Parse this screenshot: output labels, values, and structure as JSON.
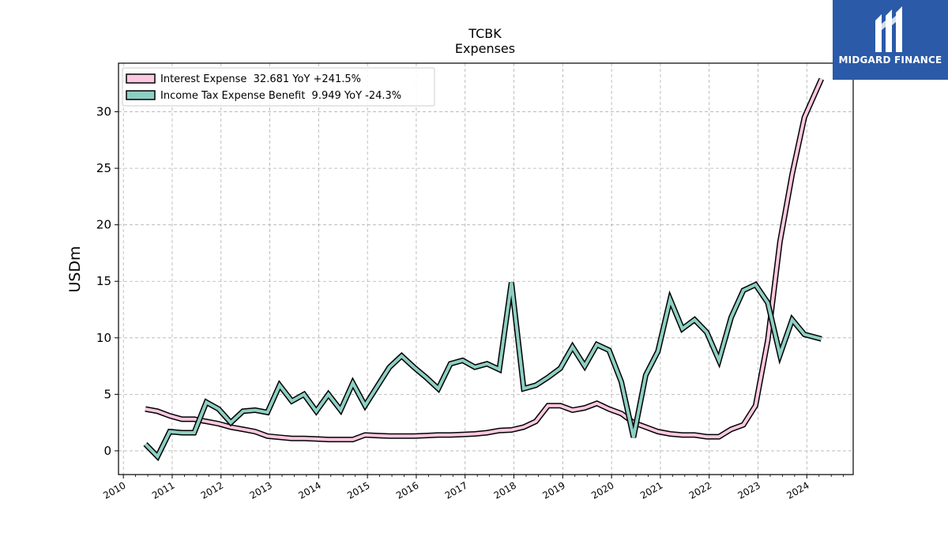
{
  "logo": {
    "text": "MIDGARD FINANCE",
    "mark_icon": "midgard-m-logo-icon"
  },
  "colors": {
    "interest": "#fbc8e0",
    "income_tax": "#8ecfc3",
    "outline": "#000000",
    "grid": "#b0b0b0",
    "logo_bg": "#2b5aa8"
  },
  "chart_data": {
    "type": "line",
    "title": "TCBK",
    "subtitle": "Expenses",
    "xlabel": "",
    "ylabel": "USDm",
    "xlim": [
      2009.9,
      2024.95
    ],
    "ylim": [
      -2.1,
      34.3
    ],
    "yticks": [
      0,
      5,
      10,
      15,
      20,
      25,
      30
    ],
    "xticks": [
      2010,
      2011,
      2012,
      2013,
      2014,
      2015,
      2016,
      2017,
      2018,
      2019,
      2020,
      2021,
      2022,
      2023,
      2024
    ],
    "grid": true,
    "legend_position": "top-left",
    "series": [
      {
        "name": "Interest Expense  32.681 YoY +241.5%",
        "color_key": "interest",
        "x": [
          2010.45,
          2010.7,
          2010.95,
          2011.2,
          2011.45,
          2011.7,
          2011.95,
          2012.2,
          2012.45,
          2012.7,
          2012.95,
          2013.2,
          2013.45,
          2013.7,
          2013.95,
          2014.2,
          2014.45,
          2014.7,
          2014.95,
          2015.2,
          2015.45,
          2015.7,
          2015.95,
          2016.2,
          2016.45,
          2016.7,
          2016.95,
          2017.2,
          2017.45,
          2017.7,
          2017.95,
          2018.2,
          2018.45,
          2018.7,
          2018.95,
          2019.2,
          2019.45,
          2019.7,
          2019.95,
          2020.2,
          2020.45,
          2020.7,
          2020.95,
          2021.2,
          2021.45,
          2021.7,
          2021.95,
          2022.2,
          2022.45,
          2022.7,
          2022.95,
          2023.2,
          2023.45,
          2023.7,
          2023.95,
          2024.3
        ],
        "y": [
          3.7,
          3.5,
          3.1,
          2.8,
          2.8,
          2.6,
          2.4,
          2.1,
          1.9,
          1.7,
          1.3,
          1.2,
          1.1,
          1.1,
          1.05,
          1.0,
          1.0,
          1.0,
          1.4,
          1.35,
          1.3,
          1.3,
          1.3,
          1.35,
          1.4,
          1.4,
          1.45,
          1.5,
          1.6,
          1.8,
          1.85,
          2.1,
          2.6,
          4.0,
          4.0,
          3.6,
          3.8,
          4.2,
          3.7,
          3.3,
          2.5,
          2.1,
          1.7,
          1.5,
          1.4,
          1.4,
          1.25,
          1.25,
          1.9,
          2.3,
          4.0,
          9.8,
          18.5,
          24.5,
          29.5,
          32.9
        ]
      },
      {
        "name": "Income Tax Expense Benefit  9.949 YoY -24.3%",
        "color_key": "income_tax",
        "x": [
          2010.45,
          2010.7,
          2010.95,
          2011.2,
          2011.45,
          2011.7,
          2011.95,
          2012.2,
          2012.45,
          2012.7,
          2012.95,
          2013.2,
          2013.45,
          2013.7,
          2013.95,
          2014.2,
          2014.45,
          2014.7,
          2014.95,
          2015.2,
          2015.45,
          2015.7,
          2015.95,
          2016.2,
          2016.45,
          2016.7,
          2016.95,
          2017.2,
          2017.45,
          2017.7,
          2017.95,
          2018.2,
          2018.45,
          2018.7,
          2018.95,
          2019.2,
          2019.45,
          2019.7,
          2019.95,
          2020.2,
          2020.45,
          2020.7,
          2020.95,
          2021.2,
          2021.45,
          2021.7,
          2021.95,
          2022.2,
          2022.45,
          2022.7,
          2022.95,
          2023.2,
          2023.45,
          2023.7,
          2023.95,
          2024.3
        ],
        "y": [
          0.6,
          -0.5,
          1.7,
          1.6,
          1.6,
          4.3,
          3.7,
          2.5,
          3.5,
          3.6,
          3.4,
          5.8,
          4.4,
          5.0,
          3.5,
          5.0,
          3.6,
          6.0,
          4.0,
          5.7,
          7.4,
          8.4,
          7.4,
          6.5,
          5.5,
          7.7,
          8.0,
          7.4,
          7.7,
          7.2,
          14.9,
          5.5,
          5.8,
          6.5,
          7.3,
          9.2,
          7.5,
          9.4,
          8.9,
          6.1,
          1.2,
          6.7,
          8.8,
          13.4,
          10.8,
          11.6,
          10.5,
          8.0,
          11.8,
          14.2,
          14.7,
          13.1,
          8.5,
          11.6,
          10.3,
          9.9
        ]
      }
    ]
  }
}
